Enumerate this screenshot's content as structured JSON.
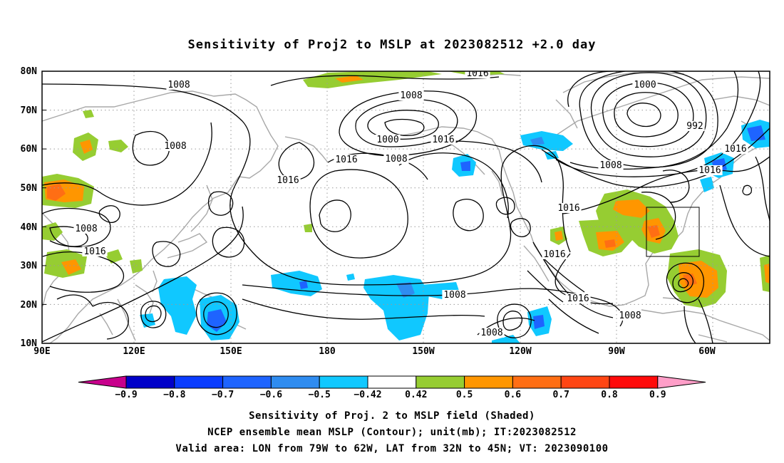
{
  "title": "Sensitivity of Proj2 to MSLP at 2023082512 +2.0 day",
  "map": {
    "lat_labels": [
      "80N",
      "70N",
      "60N",
      "50N",
      "40N",
      "30N",
      "20N",
      "10N"
    ],
    "lon_labels": [
      "90E",
      "120E",
      "150E",
      "180",
      "150W",
      "120W",
      "90W",
      "60W"
    ],
    "isobar_labels": [
      {
        "text": "1016"
      },
      {
        "text": "1008"
      },
      {
        "text": "1000"
      },
      {
        "text": "1008"
      },
      {
        "text": "1008"
      },
      {
        "text": "1016"
      },
      {
        "text": "1000"
      },
      {
        "text": "992"
      },
      {
        "text": "1016"
      },
      {
        "text": "1008"
      },
      {
        "text": "1016"
      },
      {
        "text": "1016"
      },
      {
        "text": "1008"
      },
      {
        "text": "1008"
      },
      {
        "text": "1016"
      },
      {
        "text": "1016"
      },
      {
        "text": "1016"
      },
      {
        "text": "1016"
      },
      {
        "text": "1008"
      },
      {
        "text": "1008"
      },
      {
        "text": "1008"
      },
      {
        "text": "1016"
      }
    ]
  },
  "colorbar": {
    "labels": [
      "-0.9",
      "-0.8",
      "-0.7",
      "-0.6",
      "-0.5",
      "-0.42",
      "0.42",
      "0.5",
      "0.6",
      "0.7",
      "0.8",
      "0.9"
    ],
    "colors": [
      "#0000c8",
      "#0a3cff",
      "#1e64ff",
      "#2f8cf0",
      "#10c8ff",
      "#ffffff",
      "#96cd32",
      "#ff9600",
      "#ff6e14",
      "#ff4614",
      "#ff0a0a"
    ],
    "low_end_color": "#c8008c",
    "high_end_color": "#ff9ec8"
  },
  "shading_colors": {
    "green": "#96cd32",
    "orange": "#ff9600",
    "dark_orange": "#ff6e14",
    "red_orange": "#ff4614",
    "cyan": "#10c8ff",
    "light_blue": "#2f8cf0",
    "blue": "#1e64ff"
  },
  "captions": [
    "Sensitivity of Proj. 2 to MSLP field (Shaded)",
    "NCEP ensemble mean MSLP (Contour); unit(mb); IT:2023082512",
    "Valid area: LON from 79W to 62W, LAT from 32N to 45N; VT: 2023090100"
  ]
}
